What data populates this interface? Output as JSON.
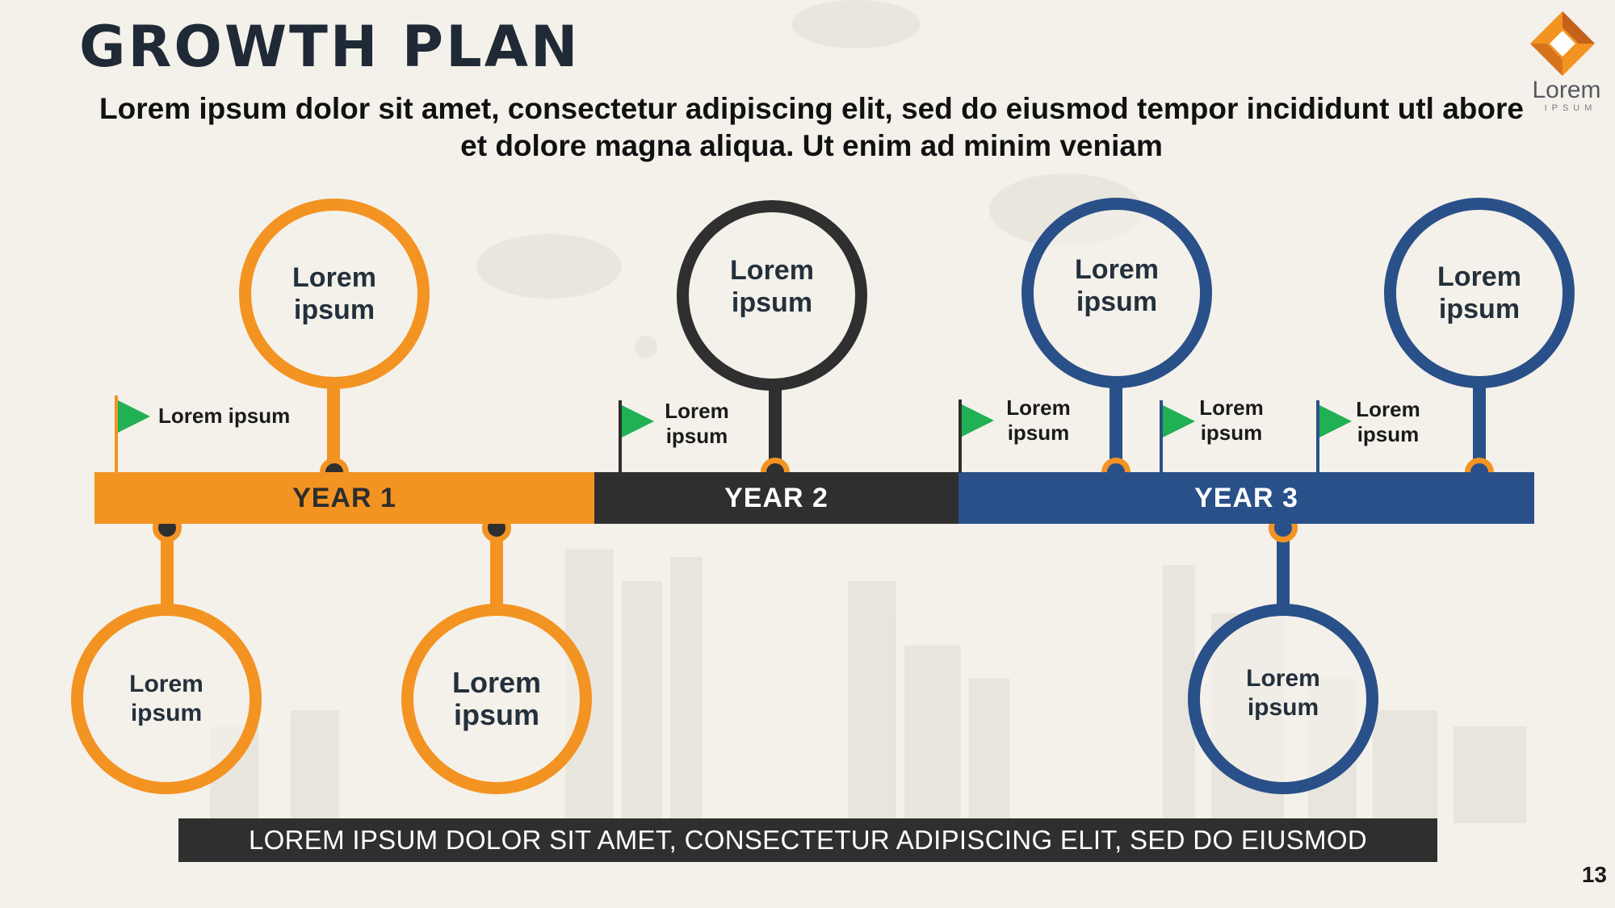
{
  "slide": {
    "title": "GROWTH PLAN",
    "subtitle": "Lorem ipsum dolor sit amet, consectetur adipiscing elit, sed do eiusmod tempor incididunt utl abore et dolore magna aliqua. Ut enim ad minim veniam",
    "logo": {
      "word": "Lorem",
      "sub": "IPSUM",
      "icon": "diamond-logo-icon"
    },
    "footer": "LOREM IPSUM DOLOR SIT AMET, CONSECTETUR ADIPISCING ELIT, SED DO EIUSMOD",
    "page_number": "13"
  },
  "colors": {
    "orange": "#f39322",
    "dark": "#2f2f2f",
    "blue": "#2a5089",
    "flag": "#1fb153",
    "background": "#f3f1ea"
  },
  "timeline": {
    "years": [
      {
        "label": "YEAR 1",
        "color": "orange"
      },
      {
        "label": "YEAR 2",
        "color": "dark"
      },
      {
        "label": "YEAR 3",
        "color": "blue"
      }
    ],
    "milestones": [
      {
        "line1": "Lorem",
        "line2": "ipsum",
        "color": "orange",
        "side": "top"
      },
      {
        "line1": "Lorem",
        "line2": "ipsum",
        "color": "orange",
        "side": "bottom"
      },
      {
        "line1": "Lorem",
        "line2": "ipsum",
        "color": "orange",
        "side": "bottom"
      },
      {
        "line1": "Lorem",
        "line2": "ipsum",
        "color": "dark",
        "side": "top"
      },
      {
        "line1": "Lorem",
        "line2": "ipsum",
        "color": "blue",
        "side": "top"
      },
      {
        "line1": "Lorem",
        "line2": "ipsum",
        "color": "blue",
        "side": "bottom"
      },
      {
        "line1": "Lorem",
        "line2": "ipsum",
        "color": "blue",
        "side": "top"
      }
    ],
    "flags": [
      {
        "text": "Lorem ipsum"
      },
      {
        "line1": "Lorem",
        "line2": "ipsum"
      },
      {
        "line1": "Lorem",
        "line2": "ipsum"
      },
      {
        "line1": "Lorem",
        "line2": "ipsum"
      },
      {
        "line1": "Lorem",
        "line2": "ipsum"
      }
    ]
  }
}
